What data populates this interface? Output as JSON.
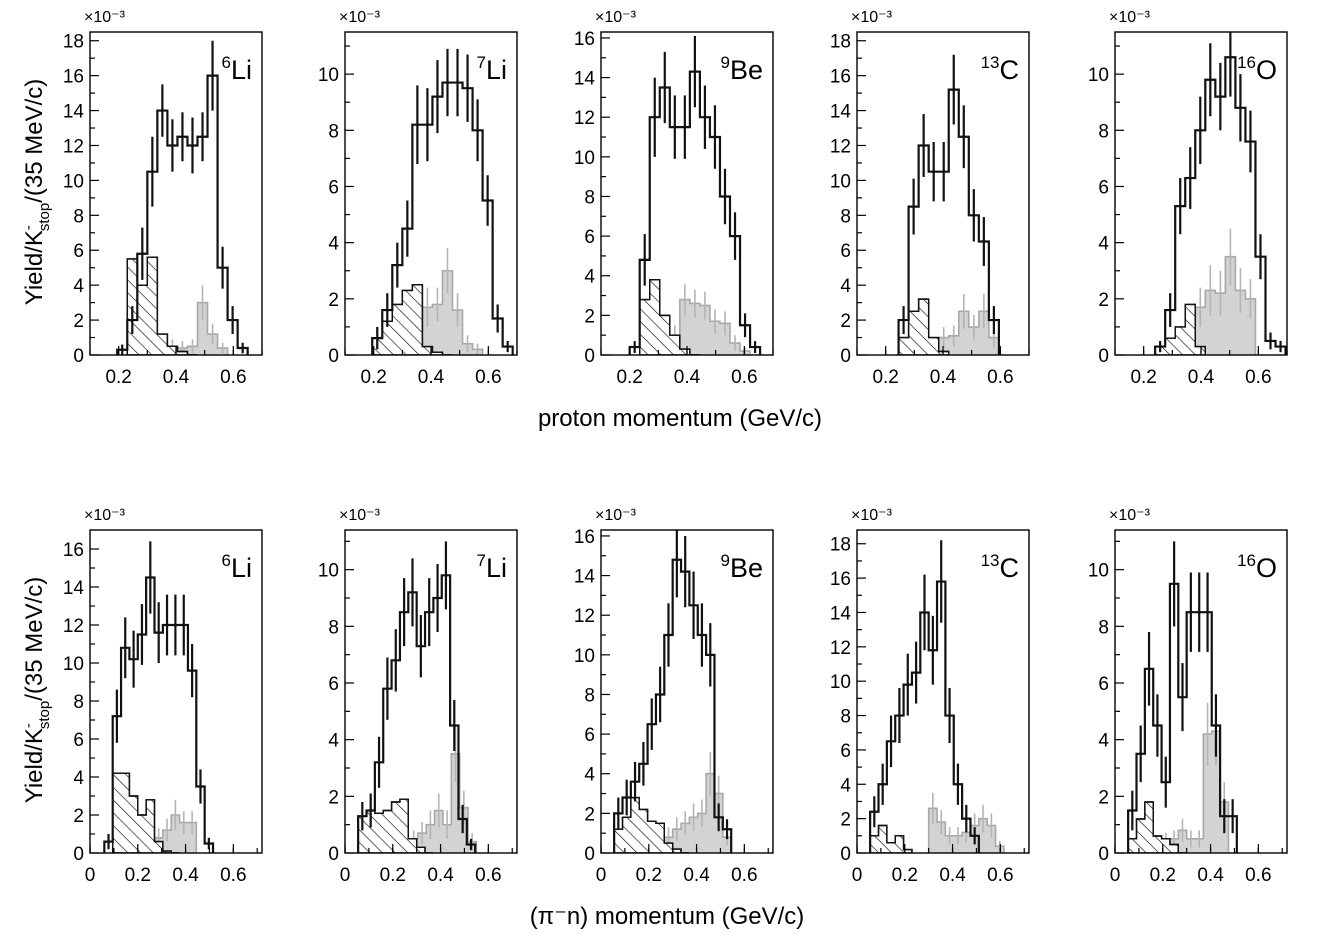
{
  "figure": {
    "row_labels": {
      "top": {
        "xtitle": "proton momentum (GeV/c)"
      },
      "bottom": {
        "xtitle": "(π⁻n) momentum (GeV/c)"
      }
    },
    "ytitle_parts": {
      "main": "Yield/K",
      "sup": "-",
      "sub": "stop",
      "tail": "/(35 MeV/c)"
    },
    "multiplier": "×10⁻³",
    "colors": {
      "main_histogram": "#111111",
      "shaded_histogram": "#d3d3d3",
      "shaded_outline": "#a8a8a8",
      "hatched_histogram": "#111111"
    }
  },
  "chart_data": [
    {
      "type": "histogram",
      "row": "top",
      "nucleus": {
        "mass": "6",
        "symbol": "Li"
      },
      "xlim": [
        0.1,
        0.7
      ],
      "ylim": [
        0,
        18.5
      ],
      "xticks": [
        "0.2",
        "0.4",
        "0.6"
      ],
      "yticks": [
        0,
        2,
        4,
        6,
        8,
        10,
        12,
        14,
        16,
        18
      ],
      "bin_width": 0.035,
      "x_start": 0.195,
      "series": [
        {
          "name": "",
          "style": "main",
          "values": [
            0.3,
            2.0,
            5.8,
            10.5,
            14.0,
            12.0,
            12.5,
            12.0,
            12.5,
            16.0,
            5.0,
            2.0,
            0.4
          ],
          "errors": [
            0.3,
            0.8,
            1.5,
            2.0,
            1.5,
            1.5,
            1.4,
            1.6,
            1.4,
            2.0,
            1.2,
            0.8,
            0.3
          ]
        },
        {
          "name": "",
          "style": "hatched",
          "x_start": 0.23,
          "values": [
            5.5,
            4.0,
            5.6,
            1.2,
            0.5,
            0.2,
            0.0
          ]
        },
        {
          "name": "",
          "style": "shaded",
          "x_start": 0.23,
          "values": [
            0.2,
            0.6,
            0.8,
            0.6,
            0.5,
            0.4,
            0.5,
            3.0,
            1.2,
            0.4
          ],
          "errors": [
            0.2,
            0.4,
            0.5,
            0.5,
            0.4,
            0.4,
            0.4,
            1.0,
            0.6,
            0.3
          ]
        }
      ]
    },
    {
      "type": "histogram",
      "row": "top",
      "nucleus": {
        "mass": "7",
        "symbol": "Li"
      },
      "xlim": [
        0.1,
        0.7
      ],
      "ylim": [
        0,
        11.5
      ],
      "xticks": [
        "0.2",
        "0.4",
        "0.6"
      ],
      "yticks": [
        0,
        2,
        4,
        6,
        8,
        10
      ],
      "bin_width": 0.035,
      "x_start": 0.195,
      "series": [
        {
          "name": "",
          "style": "main",
          "values": [
            0.6,
            1.6,
            3.2,
            4.5,
            8.2,
            8.2,
            9.2,
            9.7,
            9.7,
            9.5,
            8.0,
            5.5,
            1.3,
            0.3
          ],
          "errors": [
            0.4,
            0.6,
            0.8,
            1.0,
            1.4,
            1.3,
            1.3,
            1.2,
            1.2,
            1.2,
            1.1,
            0.9,
            0.5,
            0.2
          ]
        },
        {
          "name": "",
          "style": "hatched",
          "x_start": 0.195,
          "values": [
            0.6,
            1.2,
            1.8,
            2.3,
            2.5,
            0.3,
            0.1,
            0.0
          ]
        },
        {
          "name": "",
          "style": "shaded",
          "x_start": 0.23,
          "values": [
            0.2,
            0.4,
            0.3,
            1.3,
            1.7,
            1.8,
            3.0,
            1.6,
            0.4,
            0.2
          ],
          "errors": [
            0.2,
            0.3,
            0.3,
            0.6,
            0.7,
            0.6,
            0.8,
            0.6,
            0.3,
            0.2
          ]
        }
      ]
    },
    {
      "type": "histogram",
      "row": "top",
      "nucleus": {
        "mass": "9",
        "symbol": "Be"
      },
      "xlim": [
        0.1,
        0.7
      ],
      "ylim": [
        0,
        16.3
      ],
      "xticks": [
        "0.2",
        "0.4",
        "0.6"
      ],
      "yticks": [
        0,
        2,
        4,
        6,
        8,
        10,
        12,
        14,
        16
      ],
      "bin_width": 0.035,
      "x_start": 0.2,
      "series": [
        {
          "name": "",
          "style": "main",
          "values": [
            0.4,
            4.8,
            12.0,
            13.5,
            11.5,
            11.5,
            14.3,
            12.0,
            11.0,
            8.0,
            6.0,
            1.5,
            0.4
          ],
          "errors": [
            0.3,
            1.3,
            2.0,
            1.8,
            1.6,
            1.6,
            1.8,
            1.6,
            1.6,
            1.4,
            1.2,
            0.6,
            0.3
          ]
        },
        {
          "name": "",
          "style": "hatched",
          "x_start": 0.235,
          "values": [
            2.8,
            3.8,
            2.0,
            1.0,
            0.3,
            0.0
          ]
        },
        {
          "name": "",
          "style": "shaded",
          "x_start": 0.27,
          "values": [
            0.3,
            0.6,
            1.0,
            2.8,
            2.6,
            2.5,
            1.7,
            1.6,
            0.6,
            0.2
          ],
          "errors": [
            0.3,
            0.4,
            0.5,
            0.8,
            0.7,
            0.7,
            0.6,
            0.6,
            0.4,
            0.2
          ]
        }
      ]
    },
    {
      "type": "histogram",
      "row": "top",
      "nucleus": {
        "mass": "13",
        "symbol": "C"
      },
      "xlim": [
        0.1,
        0.7
      ],
      "ylim": [
        0,
        18.5
      ],
      "xticks": [
        "0.2",
        "0.4",
        "0.6"
      ],
      "yticks": [
        0,
        2,
        4,
        6,
        8,
        10,
        12,
        14,
        16,
        18
      ],
      "bin_width": 0.035,
      "x_start": 0.245,
      "series": [
        {
          "name": "",
          "style": "main",
          "values": [
            2.0,
            8.5,
            12.0,
            10.5,
            10.5,
            15.2,
            12.5,
            8.0,
            6.5,
            2.0
          ],
          "errors": [
            0.8,
            1.6,
            1.8,
            1.7,
            1.7,
            2.0,
            1.8,
            1.5,
            1.4,
            0.8
          ]
        },
        {
          "name": "",
          "style": "hatched",
          "x_start": 0.245,
          "values": [
            1.0,
            2.5,
            3.2,
            1.0,
            0.2
          ]
        },
        {
          "name": "",
          "style": "shaded",
          "x_start": 0.28,
          "values": [
            0.5,
            1.2,
            0.5,
            1.0,
            1.1,
            2.5,
            1.6,
            2.5,
            1.0
          ],
          "errors": [
            0.4,
            0.6,
            0.5,
            0.6,
            0.6,
            1.0,
            0.7,
            1.0,
            0.6
          ]
        }
      ]
    },
    {
      "type": "histogram",
      "row": "top",
      "nucleus": {
        "mass": "16",
        "symbol": "O"
      },
      "xlim": [
        0.1,
        0.7
      ],
      "ylim": [
        0,
        11.5
      ],
      "xticks": [
        "0.2",
        "0.4",
        "0.6"
      ],
      "yticks": [
        0,
        2,
        4,
        6,
        8,
        10
      ],
      "bin_width": 0.035,
      "x_start": 0.24,
      "series": [
        {
          "name": "",
          "style": "main",
          "values": [
            0.3,
            1.6,
            5.3,
            6.3,
            8.0,
            9.8,
            9.2,
            10.6,
            8.8,
            7.6,
            3.5,
            0.5,
            0.3
          ],
          "errors": [
            0.2,
            0.6,
            1.0,
            1.1,
            1.2,
            1.3,
            1.2,
            1.4,
            1.2,
            1.1,
            0.8,
            0.3,
            0.2
          ]
        },
        {
          "name": "",
          "style": "hatched",
          "x_start": 0.24,
          "values": [
            0.3,
            0.6,
            1.0,
            1.8,
            0.3
          ]
        },
        {
          "name": "",
          "style": "shaded",
          "x_start": 0.31,
          "values": [
            0.3,
            1.0,
            1.7,
            2.3,
            2.2,
            3.5,
            2.3,
            2.0
          ],
          "errors": [
            0.3,
            0.5,
            0.7,
            0.9,
            0.8,
            1.0,
            0.8,
            0.7
          ]
        }
      ]
    },
    {
      "type": "histogram",
      "row": "bottom",
      "nucleus": {
        "mass": "6",
        "symbol": "Li"
      },
      "xlim": [
        0,
        0.72
      ],
      "ylim": [
        0,
        17
      ],
      "xticks": [
        "0",
        "0.2",
        "0.4",
        "0.6"
      ],
      "yticks": [
        0,
        2,
        4,
        6,
        8,
        10,
        12,
        14,
        16
      ],
      "bin_width": 0.035,
      "x_start": 0.06,
      "series": [
        {
          "name": "",
          "style": "main",
          "values": [
            0.6,
            7.2,
            10.8,
            10.2,
            11.5,
            14.5,
            11.6,
            12.0,
            12.0,
            12.0,
            9.6,
            3.5,
            0.5
          ],
          "errors": [
            0.4,
            1.4,
            1.6,
            1.5,
            1.6,
            1.9,
            1.6,
            1.6,
            1.6,
            1.6,
            1.4,
            0.9,
            0.3
          ]
        },
        {
          "name": "",
          "style": "hatched",
          "x_start": 0.095,
          "values": [
            4.2,
            4.2,
            3.0,
            2.0,
            2.8,
            0.6,
            0.1,
            0.0
          ]
        },
        {
          "name": "",
          "style": "shaded",
          "x_start": 0.095,
          "values": [
            0.2,
            0.3,
            0.3,
            0.6,
            0.8,
            0.8,
            1.2,
            2.0,
            1.6,
            1.6
          ],
          "errors": [
            0.2,
            0.2,
            0.3,
            0.4,
            0.5,
            0.5,
            0.6,
            0.8,
            0.6,
            0.6
          ]
        }
      ]
    },
    {
      "type": "histogram",
      "row": "bottom",
      "nucleus": {
        "mass": "7",
        "symbol": "Li"
      },
      "xlim": [
        0,
        0.72
      ],
      "ylim": [
        0,
        11.4
      ],
      "xticks": [
        "0",
        "0.2",
        "0.4",
        "0.6"
      ],
      "yticks": [
        0,
        2,
        4,
        6,
        8,
        10
      ],
      "bin_width": 0.035,
      "x_start": 0.055,
      "series": [
        {
          "name": "",
          "style": "main",
          "values": [
            1.3,
            1.5,
            3.2,
            5.8,
            6.8,
            8.5,
            9.2,
            7.3,
            8.5,
            9.0,
            9.8,
            4.5,
            1.2,
            0.3
          ],
          "errors": [
            0.5,
            0.6,
            0.9,
            1.1,
            1.1,
            1.2,
            1.2,
            1.1,
            1.2,
            1.2,
            1.2,
            0.9,
            0.5,
            0.2
          ]
        },
        {
          "name": "",
          "style": "hatched",
          "x_start": 0.055,
          "values": [
            1.3,
            1.5,
            1.4,
            1.5,
            1.8,
            1.9,
            0.5,
            0.2,
            0.0
          ]
        },
        {
          "name": "",
          "style": "shaded",
          "x_start": 0.13,
          "values": [
            0.2,
            0.3,
            0.3,
            0.5,
            0.5,
            0.7,
            1.0,
            1.5,
            1.0,
            3.5,
            1.6,
            0.4
          ],
          "errors": [
            0.2,
            0.2,
            0.3,
            0.3,
            0.3,
            0.4,
            0.5,
            0.6,
            0.5,
            1.0,
            0.6,
            0.3
          ]
        }
      ]
    },
    {
      "type": "histogram",
      "row": "bottom",
      "nucleus": {
        "mass": "9",
        "symbol": "Be"
      },
      "xlim": [
        0,
        0.72
      ],
      "ylim": [
        0,
        16.3
      ],
      "xticks": [
        "0",
        "0.2",
        "0.4",
        "0.6"
      ],
      "yticks": [
        0,
        2,
        4,
        6,
        8,
        10,
        12,
        14,
        16
      ],
      "bin_width": 0.035,
      "x_start": 0.055,
      "series": [
        {
          "name": "",
          "style": "main",
          "values": [
            2.0,
            2.8,
            3.6,
            4.5,
            6.5,
            8.0,
            11.0,
            14.8,
            14.2,
            12.5,
            11.0,
            10.0,
            1.8,
            1.2
          ],
          "errors": [
            0.8,
            0.9,
            1.0,
            1.1,
            1.3,
            1.4,
            1.6,
            1.9,
            1.8,
            1.7,
            1.6,
            1.6,
            0.7,
            0.5
          ]
        },
        {
          "name": "",
          "style": "hatched",
          "x_start": 0.055,
          "values": [
            1.2,
            1.8,
            2.8,
            2.2,
            1.6,
            1.5,
            0.5,
            0.2,
            0.0
          ]
        },
        {
          "name": "",
          "style": "shaded",
          "x_start": 0.16,
          "values": [
            0.3,
            0.5,
            0.6,
            0.8,
            1.2,
            1.5,
            1.8,
            2.0,
            4.0,
            3.0,
            0.8
          ],
          "errors": [
            0.3,
            0.3,
            0.4,
            0.5,
            0.6,
            0.6,
            0.7,
            0.7,
            1.1,
            0.9,
            0.4
          ]
        }
      ]
    },
    {
      "type": "histogram",
      "row": "bottom",
      "nucleus": {
        "mass": "13",
        "symbol": "C"
      },
      "xlim": [
        0,
        0.72
      ],
      "ylim": [
        0,
        18.8
      ],
      "xticks": [
        "0",
        "0.2",
        "0.4",
        "0.6"
      ],
      "yticks": [
        0,
        2,
        4,
        6,
        8,
        10,
        12,
        14,
        16,
        18
      ],
      "bin_width": 0.035,
      "x_start": 0.055,
      "series": [
        {
          "name": "",
          "style": "main",
          "values": [
            2.4,
            4.0,
            6.5,
            8.0,
            9.8,
            10.5,
            14.0,
            11.8,
            15.8,
            8.0,
            4.0,
            2.0,
            1.0
          ],
          "errors": [
            0.9,
            1.2,
            1.5,
            1.6,
            1.8,
            1.8,
            2.2,
            2.0,
            2.4,
            1.6,
            1.2,
            0.8,
            0.5
          ]
        },
        {
          "name": "",
          "style": "hatched",
          "x_start": 0.055,
          "values": [
            1.0,
            1.6,
            0.6,
            1.0,
            0.2
          ]
        },
        {
          "name": "",
          "style": "shaded",
          "x_start": 0.3,
          "values": [
            2.6,
            1.8,
            1.0,
            1.0,
            1.2,
            1.6,
            2.0,
            1.6,
            0.4
          ],
          "errors": [
            0.9,
            0.7,
            0.5,
            0.5,
            0.6,
            0.7,
            0.8,
            0.7,
            0.3
          ]
        }
      ]
    },
    {
      "type": "histogram",
      "row": "bottom",
      "nucleus": {
        "mass": "16",
        "symbol": "O"
      },
      "xlim": [
        0,
        0.72
      ],
      "ylim": [
        0,
        11.4
      ],
      "xticks": [
        "0",
        "0.2",
        "0.4",
        "0.6"
      ],
      "yticks": [
        0,
        2,
        4,
        6,
        8,
        10
      ],
      "bin_width": 0.035,
      "x_start": 0.055,
      "series": [
        {
          "name": "",
          "style": "main",
          "values": [
            1.5,
            3.5,
            6.5,
            4.5,
            2.5,
            9.5,
            5.5,
            8.5,
            8.5,
            8.5,
            4.5,
            1.3,
            1.3
          ],
          "errors": [
            0.7,
            1.0,
            1.3,
            1.1,
            0.9,
            1.5,
            1.2,
            1.4,
            1.4,
            1.4,
            1.1,
            0.6,
            0.6
          ]
        },
        {
          "name": "",
          "style": "hatched",
          "x_start": 0.055,
          "values": [
            0.5,
            1.2,
            1.8,
            0.6,
            0.5,
            0.3,
            0.0
          ]
        },
        {
          "name": "",
          "style": "shaded",
          "x_start": 0.16,
          "values": [
            0.3,
            0.4,
            0.5,
            0.8,
            0.5,
            0.5,
            4.2,
            4.3,
            1.8
          ],
          "errors": [
            0.2,
            0.3,
            0.3,
            0.4,
            0.3,
            0.3,
            1.1,
            1.2,
            0.7
          ]
        }
      ]
    }
  ]
}
